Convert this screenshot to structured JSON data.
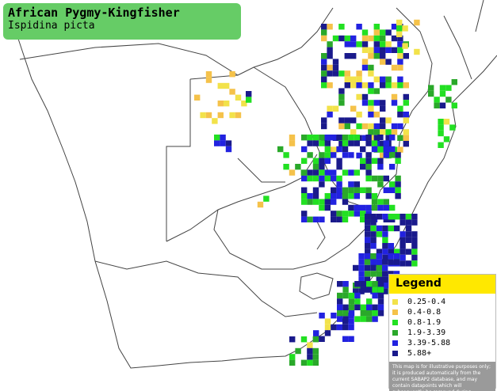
{
  "header": {
    "title": "African Pygmy-Kingfisher",
    "subtitle": "Ispidina picta"
  },
  "legend": {
    "title": "Legend",
    "items": [
      {
        "label": "0.25-0.4",
        "color": "#f2e24a"
      },
      {
        "label": "0.4-0.8",
        "color": "#f5c24a"
      },
      {
        "label": "0.8-1.9",
        "color": "#22e022"
      },
      {
        "label": "1.9-3.39",
        "color": "#2aa82a"
      },
      {
        "label": "3.39-5.88",
        "color": "#2222e0"
      },
      {
        "label": "5.88+",
        "color": "#1a1a8c"
      }
    ],
    "note": "This map is for illustrative purposes only; it is produced automatically from the current SABAP2 database, and may contain datapoints which will subsequently be removed during checking operations."
  }
}
